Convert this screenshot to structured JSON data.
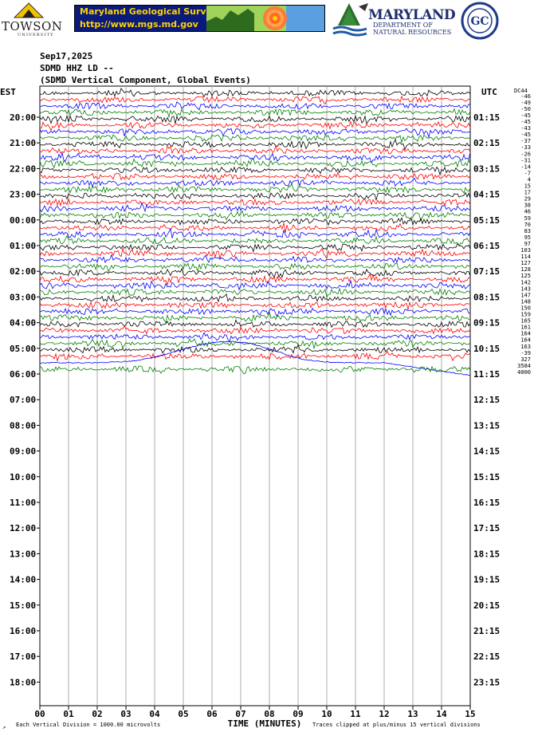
{
  "logos": {
    "towson_name": "TOWSON",
    "towson_sub": "UNIVERSITY",
    "mgs_title": "Maryland Geological Survey",
    "mgs_url": "http://www.mgs.md.gov",
    "dnr_top": "MARYLAND",
    "dnr_mid": "DEPARTMENT OF",
    "dnr_bot": "NATURAL RESOURCES",
    "goucher_initials": "GC"
  },
  "header": {
    "date": "Sep17,2025",
    "station": "SDMD HHZ LD --",
    "description": "(SDMD Vertical Component, Global Events)"
  },
  "chart_data": {
    "type": "line",
    "left_axis_label": "EST",
    "right_axis_label": "UTC",
    "xlabel": "TIME (MINUTES)",
    "x_ticks": [
      "00",
      "01",
      "02",
      "03",
      "04",
      "05",
      "06",
      "07",
      "08",
      "09",
      "10",
      "11",
      "12",
      "13",
      "14",
      "15"
    ],
    "xlim": [
      0,
      15
    ],
    "left_hour_labels": [
      "20:00",
      "21:00",
      "22:00",
      "23:00",
      "00:00",
      "01:00",
      "02:00",
      "03:00",
      "04:00",
      "05:00",
      "06:00",
      "07:00",
      "08:00",
      "09:00",
      "10:00",
      "11:00",
      "12:00",
      "13:00",
      "14:00",
      "15:00",
      "16:00",
      "17:00",
      "18:00"
    ],
    "right_hour_labels": [
      "01:15",
      "02:15",
      "03:15",
      "04:15",
      "05:15",
      "06:15",
      "07:15",
      "08:15",
      "09:15",
      "10:15",
      "11:15",
      "12:15",
      "13:15",
      "14:15",
      "15:15",
      "16:15",
      "17:15",
      "18:15",
      "19:15",
      "20:15",
      "21:15",
      "22:15",
      "23:15"
    ],
    "traces_per_hour": 4,
    "trace_color_cycle": [
      "#000000",
      "#ff0000",
      "#0000ff",
      "#008000"
    ],
    "trace_count": 44,
    "dc_offset_header": "DC44",
    "dc_offsets": [
      "-46",
      "-49",
      "-50",
      "-45",
      "-45",
      "-43",
      "-45",
      "-37",
      "-33",
      "-26",
      "-31",
      "-14",
      "-7",
      "4",
      "15",
      "17",
      "29",
      "38",
      "46",
      "59",
      "70",
      "83",
      "95",
      "97",
      "103",
      "114",
      "127",
      "128",
      "125",
      "142",
      "143",
      "147",
      "148",
      "150",
      "159",
      "165",
      "161",
      "164",
      "164",
      "163",
      "-39",
      "327",
      "3584",
      "4000"
    ],
    "long_period_drift_trace": 42,
    "footer_left": "Each Vertical Division = 1000.00 microvolts",
    "footer_right": "Traces clipped at plus/minus 15 vertical divisions"
  }
}
